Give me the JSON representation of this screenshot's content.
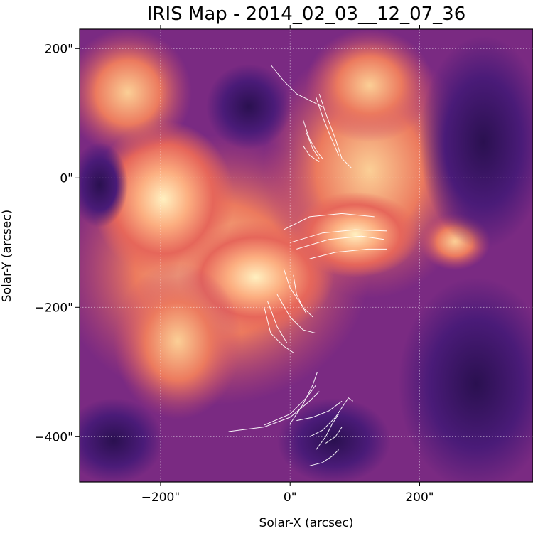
{
  "chart_data": {
    "type": "heatmap",
    "title": "IRIS Map - 2014_02_03__12_07_36",
    "xlabel": "Solar-X (arcsec)",
    "ylabel": "Solar-Y (arcsec)",
    "xlim": [
      -325,
      375
    ],
    "ylim": [
      -470,
      230
    ],
    "grid": true,
    "colormap": "magma",
    "x_ticks": [
      {
        "value": -200,
        "label": "−200\""
      },
      {
        "value": 0,
        "label": "0\""
      },
      {
        "value": 200,
        "label": "200\""
      }
    ],
    "y_ticks": [
      {
        "value": 200,
        "label": "200\""
      },
      {
        "value": 0,
        "label": "0\""
      },
      {
        "value": -200,
        "label": "−200\""
      },
      {
        "value": -400,
        "label": "−400\""
      }
    ],
    "overlay_color": "#ffffff",
    "overlay_series": [
      [
        [
          -30,
          175
        ],
        [
          -10,
          150
        ],
        [
          10,
          130
        ],
        [
          40,
          115
        ],
        [
          50,
          110
        ]
      ],
      [
        [
          45,
          130
        ],
        [
          55,
          100
        ],
        [
          70,
          60
        ],
        [
          80,
          30
        ],
        [
          95,
          15
        ]
      ],
      [
        [
          40,
          125
        ],
        [
          50,
          95
        ],
        [
          62,
          65
        ],
        [
          75,
          35
        ]
      ],
      [
        [
          20,
          90
        ],
        [
          30,
          60
        ],
        [
          42,
          40
        ],
        [
          50,
          30
        ]
      ],
      [
        [
          25,
          70
        ],
        [
          35,
          45
        ],
        [
          45,
          30
        ]
      ],
      [
        [
          20,
          50
        ],
        [
          30,
          35
        ],
        [
          45,
          25
        ]
      ],
      [
        [
          0,
          -100
        ],
        [
          50,
          -85
        ],
        [
          100,
          -80
        ],
        [
          150,
          -82
        ]
      ],
      [
        [
          10,
          -110
        ],
        [
          60,
          -95
        ],
        [
          110,
          -90
        ],
        [
          145,
          -95
        ]
      ],
      [
        [
          30,
          -125
        ],
        [
          70,
          -115
        ],
        [
          120,
          -110
        ],
        [
          150,
          -110
        ]
      ],
      [
        [
          -10,
          -80
        ],
        [
          30,
          -60
        ],
        [
          80,
          -55
        ],
        [
          130,
          -60
        ]
      ],
      [
        [
          -10,
          -140
        ],
        [
          0,
          -170
        ],
        [
          20,
          -200
        ],
        [
          35,
          -215
        ]
      ],
      [
        [
          5,
          -150
        ],
        [
          10,
          -180
        ],
        [
          25,
          -210
        ]
      ],
      [
        [
          -40,
          -200
        ],
        [
          -30,
          -240
        ],
        [
          -10,
          -260
        ],
        [
          5,
          -270
        ]
      ],
      [
        [
          -35,
          -190
        ],
        [
          -20,
          -230
        ],
        [
          -5,
          -255
        ]
      ],
      [
        [
          -20,
          -180
        ],
        [
          0,
          -215
        ],
        [
          20,
          -235
        ],
        [
          40,
          -240
        ]
      ],
      [
        [
          -95,
          -392
        ],
        [
          -40,
          -385
        ],
        [
          0,
          -370
        ],
        [
          30,
          -345
        ],
        [
          45,
          -330
        ]
      ],
      [
        [
          -40,
          -382
        ],
        [
          0,
          -365
        ],
        [
          25,
          -340
        ],
        [
          40,
          -320
        ]
      ],
      [
        [
          0,
          -380
        ],
        [
          20,
          -350
        ],
        [
          35,
          -320
        ],
        [
          42,
          -300
        ]
      ],
      [
        [
          10,
          -375
        ],
        [
          35,
          -370
        ],
        [
          60,
          -360
        ],
        [
          80,
          -345
        ]
      ],
      [
        [
          30,
          -400
        ],
        [
          50,
          -390
        ],
        [
          70,
          -370
        ],
        [
          90,
          -340
        ],
        [
          97,
          -345
        ]
      ],
      [
        [
          40,
          -420
        ],
        [
          55,
          -400
        ],
        [
          65,
          -380
        ],
        [
          75,
          -365
        ]
      ],
      [
        [
          30,
          -445
        ],
        [
          50,
          -440
        ],
        [
          65,
          -430
        ],
        [
          75,
          -420
        ]
      ],
      [
        [
          55,
          -410
        ],
        [
          70,
          -400
        ],
        [
          80,
          -385
        ]
      ]
    ]
  }
}
